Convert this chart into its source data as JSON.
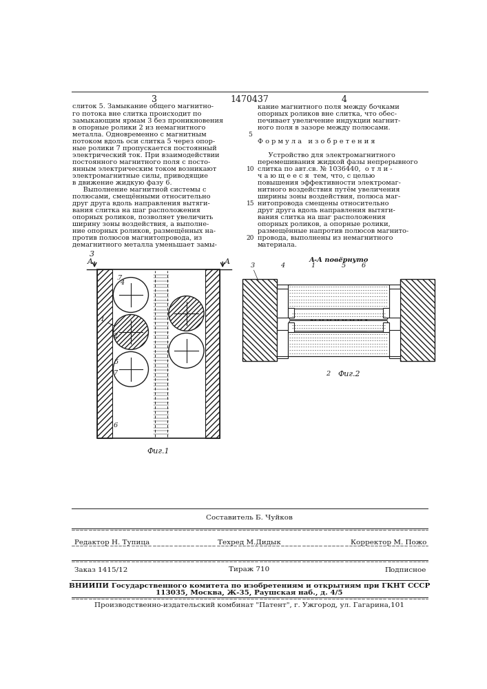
{
  "page_number_left": "3",
  "patent_number": "1470437",
  "page_number_right": "4",
  "background_color": "#ffffff",
  "text_color": "#1a1a1a",
  "left_column_text": [
    "слиток 5. Замыкание общего магнитно-",
    "го потока вне слитка происходит по",
    "замыкающим ярмам 3 без проникновения",
    "в опорные ролики 2 из немагнитного",
    "металла. Одновременно с магнитным",
    "потоком вдоль оси слитка 5 через опор-",
    "ные ролики 7 пропускается постоянный",
    "электрический ток. При взаимодействии",
    "постоянного магнитного поля с посто-",
    "янным электрическим током возникают",
    "электромагнитные силы, приводящие",
    "в движение жидкую фазу 6.",
    "     Выполнение магнитной системы с",
    "полюсами, смещёнными относительно",
    "друг друга вдоль направления вытяги-",
    "вания слитка на шаг расположения",
    "опорных роликов, позволяет увеличить",
    "ширину зоны воздействия, а выполне-",
    "ние опорных роликов, размещённых на-",
    "против полюсов магнитопровода, из",
    "демагнитного металла уменьшает замы-"
  ],
  "right_column_text": [
    "кание магнитного поля между бочками",
    "опорных роликов вне слитка, что обес-",
    "печивает увеличение индукции магнит-",
    "ного поля в зазоре между полюсами.",
    "",
    "Ф о р м у л а   и з о б р е т е н и я",
    "",
    "     Устройство для электромагнитного",
    "перемешивания жидкой фазы непрерывного",
    "слитка по авт.св. № 1036440,  о т л и -",
    "ч а ю щ е е с я  тем, что, с целью",
    "повышения эффективности электромаг-",
    "нитного воздействия путём увеличения",
    "ширины зоны воздействия, полюса маг-",
    "нитопровода смещены относительно",
    "друг друга вдоль направления вытяги-",
    "вания слитка на шаг расположения",
    "опорных роликов, а опорные ролики,",
    "размещённые напротив полюсов магнито-",
    "провода, выполнены из немагнитного",
    "материала."
  ],
  "line_number_rows": [
    4,
    9,
    14,
    19
  ],
  "line_number_vals": [
    "5",
    "10",
    "15",
    "20"
  ],
  "footer_editor": "Редактор Н. Тупица",
  "footer_composer": "Составитель Б. Чуйков",
  "footer_techred": "Техред М.Дидык",
  "footer_corrector": "Корректор М. Пожо",
  "footer_order": "Заказ 1415/12",
  "footer_tirazh": "Тираж 710",
  "footer_podpisnoe": "Подписное",
  "footer_vniipи": "ВНИИПИ Государственного комитета по изобретениям и открытиям при ГКНТ СССР",
  "footer_address": "113035, Москва, Ж-35, Раушская наб., д. 4/5",
  "footer_patent": "Производственно-издательский комбинат \"Патент\", г. Ужгород, ул. Гагарина,101",
  "fig1_label": "Фиг.1",
  "fig2_label": "Фиг.2",
  "fig2_note": "А-А повёрнуто"
}
